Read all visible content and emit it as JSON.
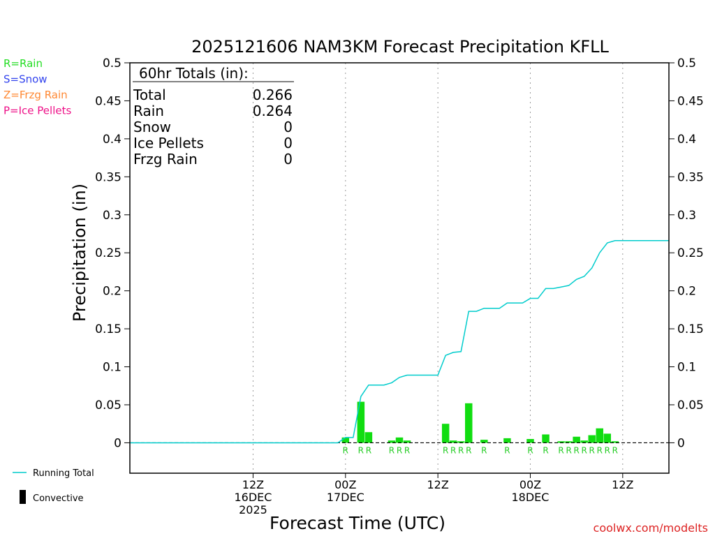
{
  "chart_data": {
    "type": "bar",
    "title": "2025121606 NAM3KM Forecast Precipitation KFLL",
    "xlabel": "Forecast Time (UTC)",
    "ylabel": "Precipitation (in)",
    "ylim": [
      -0.04,
      0.5
    ],
    "xlim": [
      -10,
      60
    ],
    "yticks": [
      "0",
      "0.05",
      "0.1",
      "0.15",
      "0.2",
      "0.25",
      "0.3",
      "0.35",
      "0.4",
      "0.45",
      "0.5"
    ],
    "ytick_values": [
      0,
      0.05,
      0.1,
      0.15,
      0.2,
      0.25,
      0.3,
      0.35,
      0.4,
      0.45,
      0.5
    ],
    "xticks": [
      {
        "hour": 6,
        "lines": [
          "12Z",
          "16DEC",
          "2025"
        ]
      },
      {
        "hour": 18,
        "lines": [
          "00Z",
          "17DEC"
        ]
      },
      {
        "hour": 30,
        "lines": [
          "12Z"
        ]
      },
      {
        "hour": 42,
        "lines": [
          "00Z",
          "18DEC"
        ]
      },
      {
        "hour": 54,
        "lines": [
          "12Z"
        ]
      }
    ],
    "totals": {
      "header": "60hr Totals (in):",
      "rows": [
        {
          "label": "Total",
          "value": "0.266"
        },
        {
          "label": "Rain",
          "value": "0.264"
        },
        {
          "label": "Snow",
          "value": "0"
        },
        {
          "label": "Ice Pellets",
          "value": "0"
        },
        {
          "label": "Frzg Rain",
          "value": "0"
        }
      ]
    },
    "type_legend": [
      {
        "text": "R=Rain",
        "color": "#22dd22"
      },
      {
        "text": "S=Snow",
        "color": "#3344ee"
      },
      {
        "text": "Z=Frzg Rain",
        "color": "#ff8833"
      },
      {
        "text": "P=Ice Pellets",
        "color": "#ee1188"
      }
    ],
    "series_legend": [
      {
        "name": "Running Total",
        "kind": "line",
        "color": "#00cccc"
      },
      {
        "name": "Convective",
        "kind": "bar",
        "color": "#000000"
      }
    ],
    "precip_type_letter": "R",
    "bars": [
      {
        "hour": 18,
        "value": 0.007
      },
      {
        "hour": 20,
        "value": 0.054
      },
      {
        "hour": 21,
        "value": 0.014
      },
      {
        "hour": 24,
        "value": 0.003
      },
      {
        "hour": 25,
        "value": 0.007
      },
      {
        "hour": 26,
        "value": 0.003
      },
      {
        "hour": 31,
        "value": 0.025
      },
      {
        "hour": 32,
        "value": 0.003
      },
      {
        "hour": 33,
        "value": 0.002
      },
      {
        "hour": 34,
        "value": 0.052
      },
      {
        "hour": 36,
        "value": 0.004
      },
      {
        "hour": 39,
        "value": 0.006
      },
      {
        "hour": 42,
        "value": 0.005
      },
      {
        "hour": 44,
        "value": 0.011
      },
      {
        "hour": 46,
        "value": 0.002
      },
      {
        "hour": 47,
        "value": 0.002
      },
      {
        "hour": 48,
        "value": 0.008
      },
      {
        "hour": 49,
        "value": 0.003
      },
      {
        "hour": 50,
        "value": 0.01
      },
      {
        "hour": 51,
        "value": 0.019
      },
      {
        "hour": 52,
        "value": 0.012
      },
      {
        "hour": 53,
        "value": 0.002
      }
    ],
    "running_total": {
      "hours": [
        -10,
        17,
        18,
        19,
        20,
        21,
        22,
        23,
        24,
        25,
        26,
        27,
        28,
        29,
        30,
        31,
        32,
        33,
        34,
        35,
        36,
        37,
        38,
        39,
        40,
        41,
        42,
        43,
        44,
        45,
        46,
        47,
        48,
        49,
        50,
        51,
        52,
        53,
        54,
        55,
        60
      ],
      "values": [
        0,
        0,
        0.007,
        0.007,
        0.061,
        0.076,
        0.076,
        0.076,
        0.079,
        0.086,
        0.089,
        0.089,
        0.089,
        0.089,
        0.089,
        0.115,
        0.119,
        0.12,
        0.173,
        0.173,
        0.177,
        0.177,
        0.177,
        0.184,
        0.184,
        0.184,
        0.19,
        0.19,
        0.203,
        0.203,
        0.205,
        0.207,
        0.215,
        0.219,
        0.23,
        0.25,
        0.263,
        0.266,
        0.266,
        0.266,
        0.266
      ]
    }
  },
  "footer": {
    "credit": "coolwx.com/modelts"
  }
}
